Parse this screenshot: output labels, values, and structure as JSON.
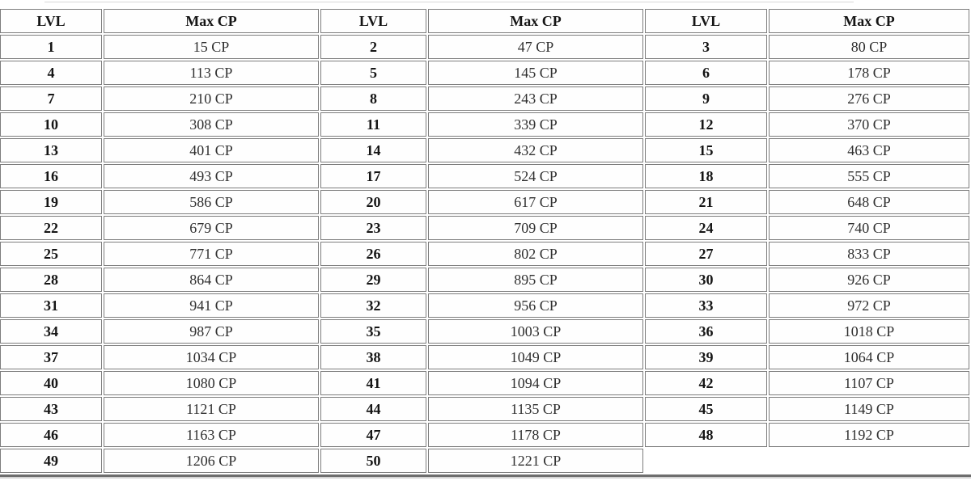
{
  "page": {
    "background": "#ffffff",
    "border_color": "#7d7d7d",
    "level_text_color": "#151515",
    "cp_text_color": "#2f2f2f"
  },
  "table": {
    "columns": [
      "LVL",
      "Max CP",
      "LVL",
      "Max CP",
      "LVL",
      "Max CP"
    ],
    "rows": [
      [
        "1",
        "15 CP",
        "2",
        "47 CP",
        "3",
        "80 CP"
      ],
      [
        "4",
        "113 CP",
        "5",
        "145 CP",
        "6",
        "178 CP"
      ],
      [
        "7",
        "210 CP",
        "8",
        "243 CP",
        "9",
        "276 CP"
      ],
      [
        "10",
        "308 CP",
        "11",
        "339 CP",
        "12",
        "370 CP"
      ],
      [
        "13",
        "401 CP",
        "14",
        "432 CP",
        "15",
        "463 CP"
      ],
      [
        "16",
        "493 CP",
        "17",
        "524 CP",
        "18",
        "555 CP"
      ],
      [
        "19",
        "586 CP",
        "20",
        "617 CP",
        "21",
        "648 CP"
      ],
      [
        "22",
        "679 CP",
        "23",
        "709 CP",
        "24",
        "740 CP"
      ],
      [
        "25",
        "771 CP",
        "26",
        "802 CP",
        "27",
        "833 CP"
      ],
      [
        "28",
        "864 CP",
        "29",
        "895 CP",
        "30",
        "926 CP"
      ],
      [
        "31",
        "941 CP",
        "32",
        "956 CP",
        "33",
        "972 CP"
      ],
      [
        "34",
        "987 CP",
        "35",
        "1003 CP",
        "36",
        "1018 CP"
      ],
      [
        "37",
        "1034 CP",
        "38",
        "1049 CP",
        "39",
        "1064 CP"
      ],
      [
        "40",
        "1080 CP",
        "41",
        "1094 CP",
        "42",
        "1107 CP"
      ],
      [
        "43",
        "1121 CP",
        "44",
        "1135 CP",
        "45",
        "1149 CP"
      ],
      [
        "46",
        "1163 CP",
        "47",
        "1178 CP",
        "48",
        "1192 CP"
      ],
      [
        "49",
        "1206 CP",
        "50",
        "1221 CP"
      ]
    ]
  },
  "chart_data": {
    "type": "table",
    "columns": [
      "LVL",
      "Max CP"
    ],
    "levels": [
      1,
      2,
      3,
      4,
      5,
      6,
      7,
      8,
      9,
      10,
      11,
      12,
      13,
      14,
      15,
      16,
      17,
      18,
      19,
      20,
      21,
      22,
      23,
      24,
      25,
      26,
      27,
      28,
      29,
      30,
      31,
      32,
      33,
      34,
      35,
      36,
      37,
      38,
      39,
      40,
      41,
      42,
      43,
      44,
      45,
      46,
      47,
      48,
      49,
      50
    ],
    "max_cp": [
      15,
      47,
      80,
      113,
      145,
      178,
      210,
      243,
      276,
      308,
      339,
      370,
      401,
      432,
      463,
      493,
      524,
      555,
      586,
      617,
      648,
      679,
      709,
      740,
      771,
      802,
      833,
      864,
      895,
      926,
      941,
      956,
      972,
      987,
      1003,
      1018,
      1034,
      1049,
      1064,
      1080,
      1094,
      1107,
      1121,
      1135,
      1149,
      1163,
      1178,
      1192,
      1206,
      1221
    ]
  }
}
